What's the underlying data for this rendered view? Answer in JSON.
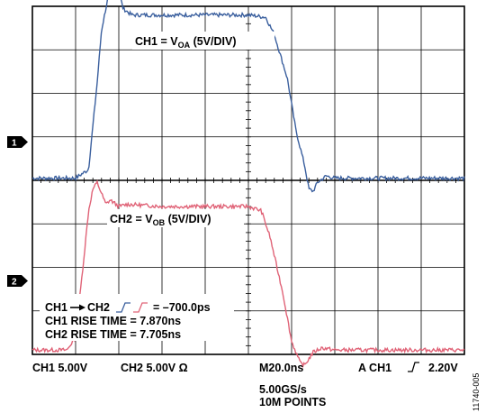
{
  "chart_data": {
    "type": "line",
    "grid": true,
    "x_divisions": 10,
    "y_divisions": 8,
    "time_per_div": "20.0ns",
    "series": [
      {
        "name": "CH1",
        "color": "#3a5f9e",
        "x": [
          0,
          1.0,
          1.3,
          1.5,
          1.6,
          1.7,
          1.8,
          1.9,
          2.0,
          2.1,
          2.3,
          2.6,
          3.0,
          4.0,
          5.0,
          5.4,
          5.6,
          5.9,
          6.1,
          6.3,
          6.4,
          6.5,
          6.6,
          6.8,
          7.0,
          10
        ],
        "y": [
          0,
          0,
          0.2,
          2.2,
          3.4,
          3.9,
          4.4,
          4.5,
          4.3,
          3.9,
          3.75,
          3.75,
          3.75,
          3.75,
          3.75,
          3.7,
          3.3,
          2.3,
          1.1,
          0.3,
          -0.25,
          -0.3,
          -0.1,
          0.05,
          0,
          0
        ]
      },
      {
        "name": "CH2",
        "color": "#e06377",
        "x": [
          0,
          0.8,
          1.0,
          1.2,
          1.3,
          1.4,
          1.5,
          1.6,
          1.7,
          1.8,
          2.0,
          2.2,
          3.0,
          4.0,
          5.0,
          5.3,
          5.5,
          5.8,
          6.0,
          6.2,
          6.3,
          6.4,
          6.5,
          6.7,
          7.0,
          10
        ],
        "y": [
          0,
          0,
          0.3,
          2.2,
          3.2,
          3.7,
          3.85,
          3.6,
          3.35,
          3.45,
          3.3,
          3.35,
          3.3,
          3.3,
          3.3,
          3.2,
          2.6,
          1.3,
          0.2,
          -0.3,
          -0.35,
          -0.2,
          -0.05,
          0.05,
          0,
          0
        ]
      }
    ]
  },
  "annotations": {
    "ch1_label": {
      "prefix": "CH1 = V",
      "sub": "OA",
      "suffix": " (5V/DIV)"
    },
    "ch2_label": {
      "prefix": "CH2 = V",
      "sub": "OB",
      "suffix": " (5V/DIV)"
    },
    "delay_prefix": "CH1",
    "delay_ch2": "CH2",
    "delay_value": "= –700.0ps",
    "ch1_rise": "CH1 RISE TIME = 7.870ns",
    "ch2_rise": "CH2 RISE TIME = 7.705ns"
  },
  "markers": {
    "ch1": "1",
    "ch2": "2"
  },
  "footer": {
    "ch1_scale": "CH1  5.00V",
    "ch2_scale": "CH2  5.00V  Ω",
    "timebase": "M20.0ns",
    "trigger_prefix": "A  CH1",
    "trigger_level": "2.20V",
    "sample_rate": "5.00GS/s",
    "points": "10M POINTS"
  },
  "figure_id": "11740-005"
}
